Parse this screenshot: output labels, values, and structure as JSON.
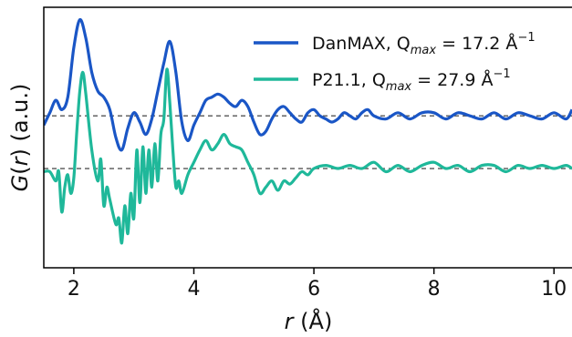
{
  "chart_data": {
    "type": "line",
    "xlabel": "r (Å)",
    "ylabel": "G(r) (a.u.)",
    "xlim": [
      1.5,
      10.3
    ],
    "ylim": [
      -1.6,
      2.6
    ],
    "grid": false,
    "legend_placement": "top-right",
    "x_ticks": [
      2,
      4,
      6,
      8,
      10
    ],
    "x_tick_labels": [
      "2",
      "4",
      "6",
      "8",
      "10"
    ],
    "y_ticks_visible": false,
    "baselines": [
      {
        "y": 0.85,
        "style": "dashed",
        "color": "#555555"
      },
      {
        "y": 0.0,
        "style": "dashed",
        "color": "#555555"
      }
    ],
    "series": [
      {
        "name": "DanMAX, Q_max = 17.2 Å⁻¹",
        "legend_parts": {
          "main": "DanMAX, Q",
          "sub": "max",
          "value": " = 17.2 Å",
          "sup": "−1"
        },
        "color": "#1a56c6",
        "offset": 0.85,
        "x": [
          1.5,
          1.6,
          1.7,
          1.8,
          1.9,
          2.0,
          2.1,
          2.2,
          2.3,
          2.4,
          2.5,
          2.6,
          2.7,
          2.8,
          2.9,
          3.0,
          3.1,
          3.2,
          3.3,
          3.4,
          3.5,
          3.6,
          3.7,
          3.8,
          3.9,
          4.0,
          4.1,
          4.2,
          4.3,
          4.4,
          4.5,
          4.6,
          4.7,
          4.8,
          4.9,
          5.0,
          5.1,
          5.2,
          5.3,
          5.4,
          5.5,
          5.6,
          5.7,
          5.8,
          5.9,
          6.0,
          6.1,
          6.2,
          6.3,
          6.4,
          6.5,
          6.6,
          6.7,
          6.8,
          6.9,
          7.0,
          7.2,
          7.4,
          7.6,
          7.8,
          8.0,
          8.2,
          8.4,
          8.6,
          8.8,
          9.0,
          9.2,
          9.4,
          9.6,
          9.8,
          10.0,
          10.2,
          10.3
        ],
        "y": [
          -0.15,
          0.05,
          0.25,
          0.1,
          0.3,
          1.1,
          1.55,
          1.25,
          0.7,
          0.4,
          0.3,
          0.1,
          -0.35,
          -0.55,
          -0.2,
          0.05,
          -0.1,
          -0.3,
          -0.05,
          0.4,
          0.85,
          1.2,
          0.7,
          -0.1,
          -0.4,
          -0.15,
          0.05,
          0.25,
          0.3,
          0.35,
          0.3,
          0.2,
          0.15,
          0.25,
          0.15,
          -0.1,
          -0.3,
          -0.25,
          -0.05,
          0.1,
          0.15,
          0.05,
          -0.05,
          -0.1,
          0.05,
          0.1,
          0.0,
          -0.05,
          -0.1,
          -0.05,
          0.05,
          0.0,
          -0.05,
          0.05,
          0.1,
          0.0,
          -0.05,
          0.05,
          -0.05,
          0.05,
          0.05,
          -0.05,
          0.05,
          0.0,
          -0.05,
          0.05,
          -0.05,
          0.05,
          0.0,
          -0.05,
          0.05,
          -0.05,
          0.1
        ]
      },
      {
        "name": "P21.1, Q_max = 27.9 Å⁻¹",
        "legend_parts": {
          "main": "P21.1, Q",
          "sub": "max",
          "value": " = 27.9 Å",
          "sup": "−1"
        },
        "color": "#1fb89a",
        "offset": 0.0,
        "x": [
          1.5,
          1.6,
          1.7,
          1.75,
          1.8,
          1.85,
          1.9,
          1.95,
          2.0,
          2.05,
          2.1,
          2.15,
          2.2,
          2.3,
          2.4,
          2.45,
          2.5,
          2.55,
          2.6,
          2.7,
          2.75,
          2.8,
          2.85,
          2.9,
          2.95,
          3.0,
          3.05,
          3.1,
          3.15,
          3.2,
          3.25,
          3.3,
          3.35,
          3.4,
          3.45,
          3.5,
          3.55,
          3.6,
          3.65,
          3.7,
          3.75,
          3.8,
          3.9,
          4.0,
          4.1,
          4.2,
          4.3,
          4.4,
          4.5,
          4.6,
          4.7,
          4.8,
          4.9,
          5.0,
          5.1,
          5.2,
          5.3,
          5.4,
          5.5,
          5.6,
          5.7,
          5.8,
          5.9,
          6.0,
          6.2,
          6.4,
          6.6,
          6.8,
          7.0,
          7.2,
          7.4,
          7.6,
          7.8,
          8.0,
          8.2,
          8.4,
          8.6,
          8.8,
          9.0,
          9.2,
          9.4,
          9.6,
          9.8,
          10.0,
          10.2,
          10.3
        ],
        "y": [
          -0.05,
          -0.05,
          -0.2,
          -0.05,
          -0.7,
          -0.3,
          -0.1,
          -0.4,
          -0.15,
          0.6,
          1.25,
          1.55,
          1.2,
          0.3,
          -0.2,
          0.15,
          -0.6,
          -0.3,
          -0.5,
          -0.9,
          -0.8,
          -1.2,
          -0.6,
          -1.05,
          -0.4,
          -0.8,
          0.3,
          -0.55,
          0.35,
          -0.4,
          0.3,
          -0.3,
          0.4,
          -0.2,
          0.55,
          0.8,
          1.6,
          1.05,
          0.3,
          -0.3,
          -0.2,
          -0.4,
          -0.1,
          0.1,
          0.3,
          0.45,
          0.3,
          0.4,
          0.55,
          0.4,
          0.35,
          0.3,
          0.1,
          -0.1,
          -0.4,
          -0.3,
          -0.2,
          -0.35,
          -0.2,
          -0.25,
          -0.15,
          -0.05,
          -0.1,
          0.0,
          0.05,
          0.0,
          0.05,
          0.0,
          0.1,
          -0.05,
          0.05,
          -0.05,
          0.05,
          0.1,
          0.0,
          0.05,
          -0.05,
          0.05,
          0.05,
          -0.05,
          0.05,
          0.0,
          0.05,
          0.0,
          0.05,
          0.0
        ]
      }
    ]
  }
}
